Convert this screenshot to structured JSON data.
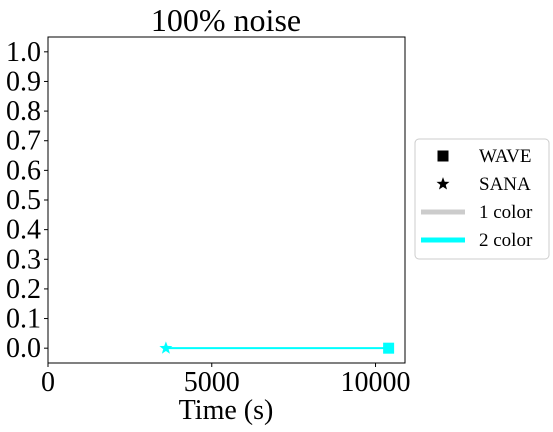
{
  "chart_data": {
    "type": "line",
    "title": "100% noise",
    "xlabel": "Time (s)",
    "ylabel": "",
    "xlim": [
      0,
      10900
    ],
    "ylim": [
      -0.05,
      1.05
    ],
    "xticks": [
      0,
      5000,
      10000
    ],
    "xtick_labels": [
      "0",
      "5000",
      "10000"
    ],
    "yticks": [
      0.0,
      0.1,
      0.2,
      0.3,
      0.4,
      0.5,
      0.6,
      0.7,
      0.8,
      0.9,
      1.0
    ],
    "ytick_labels": [
      "0.0",
      "0.1",
      "0.2",
      "0.3",
      "0.4",
      "0.5",
      "0.6",
      "0.7",
      "0.8",
      "0.9",
      "1.0"
    ],
    "grid": false,
    "legend_position": "right",
    "series": [
      {
        "name": "2 color",
        "color": "#00ffff",
        "points": [
          {
            "x": 3600,
            "y": 0.0,
            "marker": "star"
          },
          {
            "x": 10400,
            "y": 0.0,
            "marker": "square"
          }
        ]
      }
    ],
    "legend": [
      {
        "label": "WAVE",
        "kind": "marker",
        "marker": "square",
        "color": "#000000"
      },
      {
        "label": "SANA",
        "kind": "marker",
        "marker": "star",
        "color": "#000000"
      },
      {
        "label": "1 color",
        "kind": "line",
        "color": "#cccccc"
      },
      {
        "label": "2 color",
        "kind": "line",
        "color": "#00ffff"
      }
    ]
  }
}
